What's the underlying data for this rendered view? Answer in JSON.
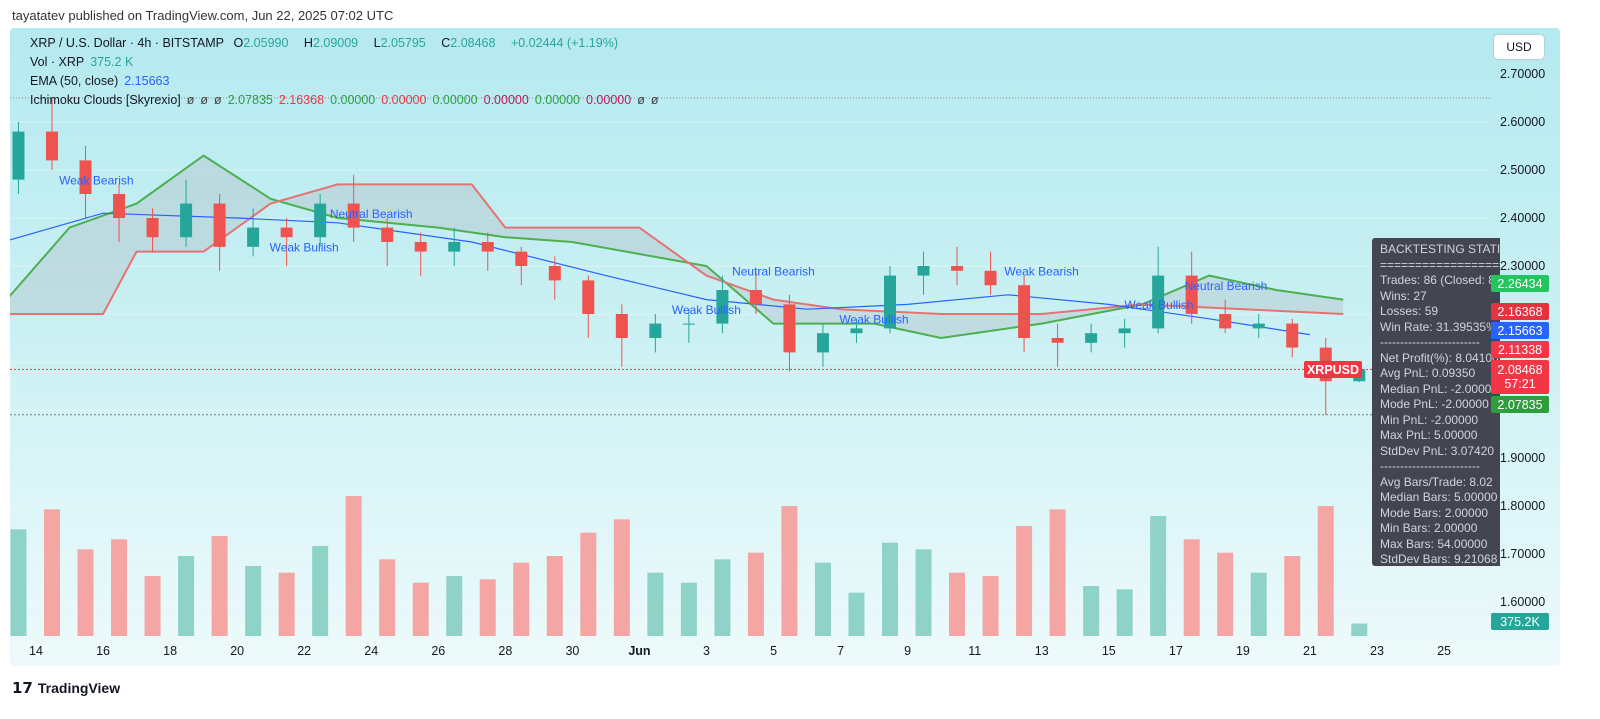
{
  "published": "tayatatev published on TradingView.com, Jun 22, 2025 07:02 UTC",
  "legend": {
    "symbol": "XRP / U.S. Dollar · 4h · BITSTAMP",
    "o_label": "O",
    "o": "2.05990",
    "h_label": "H",
    "h": "2.09009",
    "l_label": "L",
    "l": "2.05795",
    "c_label": "C",
    "c": "2.08468",
    "change": "+0.02444 (+1.19%)",
    "vol_label": "Vol · XRP",
    "vol": "375.2 K",
    "ema_label": "EMA (50, close)",
    "ema": "2.15663",
    "ichi_label": "Ichimoku Clouds [Skyrexio]",
    "ichi_values": [
      "ø",
      "ø",
      "ø",
      "2.07835",
      "2.16368",
      "0.00000",
      "0.00000",
      "0.00000",
      "0.00000",
      "0.00000",
      "0.00000",
      "ø",
      "ø"
    ]
  },
  "currency_button": "USD",
  "price_ticks": [
    "2.70000",
    "2.60000",
    "2.50000",
    "2.40000",
    "2.30000",
    "1.90000",
    "1.80000",
    "1.70000",
    "1.60000"
  ],
  "price_labels": [
    {
      "v": "2.26434",
      "color": "#22c55e"
    },
    {
      "v": "2.16368",
      "color": "#e5323f"
    },
    {
      "v": "2.15663",
      "color": "#2962ff"
    },
    {
      "v": "2.11338",
      "color": "#f23645"
    },
    {
      "v": "2.08468",
      "color": "#f23645"
    },
    {
      "v": "2.07835",
      "color": "#2e9e3c"
    }
  ],
  "countdown": "57:21",
  "symbol_tag": "XRPUSD",
  "volume_label": "375.2K",
  "x_labels": [
    "14",
    "16",
    "18",
    "20",
    "22",
    "24",
    "26",
    "28",
    "30",
    "Jun",
    "3",
    "5",
    "7",
    "9",
    "11",
    "13",
    "15",
    "17",
    "19",
    "21",
    "23",
    "25"
  ],
  "stats": {
    "title": "BACKTESTING STATISTICS",
    "sep": "==================",
    "lines1": [
      "Trades: 86 (Closed: 86)",
      "Wins: 27",
      "Losses: 59",
      "Win Rate: 31.39535%"
    ],
    "dash": "-------------------------",
    "lines2": [
      "Net Profit(%): 8.04100",
      "Avg PnL: 0.09350",
      "Median PnL: -2.00000",
      "Mode PnL: -2.00000",
      "Min PnL: -2.00000",
      "Max PnL: 5.00000",
      "StdDev PnL: 3.07420"
    ],
    "lines3": [
      "Avg Bars/Trade: 8.02",
      "Median Bars: 5.00000",
      "Mode Bars: 2.00000",
      "Min Bars: 2.00000",
      "Max Bars: 54.00000",
      "StdDev Bars: 9.21068"
    ]
  },
  "brand": "TradingView",
  "colors": {
    "up": "#26a69a",
    "down": "#ef5350",
    "ema": "#2962ff",
    "span_a": "#4caf50",
    "span_b": "#e57373"
  },
  "chart_data": {
    "type": "candlestick",
    "timeframe": "4h",
    "ylim": [
      1.55,
      2.75
    ],
    "xlim": [
      "2025-05-13",
      "2025-05-26"
    ],
    "candles": [
      [
        "2025-05-13",
        2.48,
        2.6,
        2.45,
        2.58
      ],
      [
        "2025-05-14",
        2.58,
        2.65,
        2.5,
        2.52
      ],
      [
        "2025-05-15",
        2.52,
        2.55,
        2.4,
        2.45
      ],
      [
        "2025-05-16",
        2.45,
        2.47,
        2.35,
        2.4
      ],
      [
        "2025-05-17",
        2.4,
        2.42,
        2.33,
        2.36
      ],
      [
        "2025-05-18",
        2.36,
        2.48,
        2.34,
        2.43
      ],
      [
        "2025-05-19",
        2.43,
        2.45,
        2.29,
        2.34
      ],
      [
        "2025-05-20",
        2.34,
        2.42,
        2.32,
        2.38
      ],
      [
        "2025-05-21",
        2.38,
        2.4,
        2.3,
        2.36
      ],
      [
        "2025-05-22",
        2.36,
        2.45,
        2.34,
        2.43
      ],
      [
        "2025-05-23",
        2.43,
        2.49,
        2.35,
        2.38
      ],
      [
        "2025-05-24",
        2.38,
        2.4,
        2.3,
        2.35
      ],
      [
        "2025-05-25",
        2.35,
        2.37,
        2.28,
        2.33
      ],
      [
        "2025-05-26",
        2.33,
        2.38,
        2.3,
        2.35
      ],
      [
        "2025-05-27",
        2.35,
        2.37,
        2.29,
        2.33
      ],
      [
        "2025-05-28",
        2.33,
        2.34,
        2.26,
        2.3
      ],
      [
        "2025-05-29",
        2.3,
        2.32,
        2.23,
        2.27
      ],
      [
        "2025-05-30",
        2.27,
        2.28,
        2.15,
        2.2
      ],
      [
        "2025-05-31",
        2.2,
        2.22,
        2.09,
        2.15
      ],
      [
        "2025-06-01",
        2.15,
        2.2,
        2.12,
        2.18
      ],
      [
        "2025-06-02",
        2.18,
        2.21,
        2.14,
        2.18
      ],
      [
        "2025-06-03",
        2.18,
        2.28,
        2.16,
        2.25
      ],
      [
        "2025-06-04",
        2.25,
        2.29,
        2.2,
        2.22
      ],
      [
        "2025-06-05",
        2.22,
        2.24,
        2.08,
        2.12
      ],
      [
        "2025-06-06",
        2.12,
        2.18,
        2.09,
        2.16
      ],
      [
        "2025-06-07",
        2.16,
        2.19,
        2.14,
        2.17
      ],
      [
        "2025-06-08",
        2.17,
        2.3,
        2.16,
        2.28
      ],
      [
        "2025-06-09",
        2.28,
        2.33,
        2.24,
        2.3
      ],
      [
        "2025-06-10",
        2.3,
        2.34,
        2.26,
        2.29
      ],
      [
        "2025-06-11",
        2.29,
        2.33,
        2.24,
        2.26
      ],
      [
        "2025-06-12",
        2.26,
        2.28,
        2.12,
        2.15
      ],
      [
        "2025-06-13",
        2.15,
        2.18,
        2.09,
        2.14
      ],
      [
        "2025-06-14",
        2.14,
        2.18,
        2.12,
        2.16
      ],
      [
        "2025-06-15",
        2.16,
        2.19,
        2.13,
        2.17
      ],
      [
        "2025-06-16",
        2.17,
        2.34,
        2.16,
        2.28
      ],
      [
        "2025-06-17",
        2.28,
        2.33,
        2.18,
        2.2
      ],
      [
        "2025-06-18",
        2.2,
        2.23,
        2.16,
        2.17
      ],
      [
        "2025-06-19",
        2.17,
        2.2,
        2.15,
        2.18
      ],
      [
        "2025-06-20",
        2.18,
        2.19,
        2.11,
        2.13
      ],
      [
        "2025-06-21",
        2.13,
        2.15,
        1.99,
        2.06
      ],
      [
        "2025-06-22",
        2.0599,
        2.09009,
        2.05795,
        2.08468
      ]
    ],
    "volume_k": [
      3200,
      3800,
      2600,
      2900,
      1800,
      2400,
      3000,
      2100,
      1900,
      2700,
      4200,
      2300,
      1600,
      1800,
      1700,
      2200,
      2400,
      3100,
      3500,
      1900,
      1600,
      2300,
      2500,
      3900,
      2200,
      1300,
      2800,
      2600,
      1900,
      1800,
      3300,
      3800,
      1500,
      1400,
      3600,
      2900,
      2500,
      1900,
      2400,
      3900,
      375.2
    ],
    "ema_50": [
      [
        "2025-05-13",
        2.35
      ],
      [
        "2025-05-16",
        2.41
      ],
      [
        "2025-05-20",
        2.4
      ],
      [
        "2025-05-23",
        2.39
      ],
      [
        "2025-05-27",
        2.35
      ],
      [
        "2025-05-31",
        2.28
      ],
      [
        "2025-06-03",
        2.23
      ],
      [
        "2025-06-06",
        2.21
      ],
      [
        "2025-06-09",
        2.22
      ],
      [
        "2025-06-12",
        2.24
      ],
      [
        "2025-06-15",
        2.22
      ],
      [
        "2025-06-18",
        2.19
      ],
      [
        "2025-06-21",
        2.157
      ]
    ],
    "span_a": [
      [
        "2025-05-13",
        2.22
      ],
      [
        "2025-05-15",
        2.38
      ],
      [
        "2025-05-17",
        2.43
      ],
      [
        "2025-05-19",
        2.53
      ],
      [
        "2025-05-21",
        2.44
      ],
      [
        "2025-05-23",
        2.4
      ],
      [
        "2025-05-26",
        2.38
      ],
      [
        "2025-05-28",
        2.36
      ],
      [
        "2025-05-30",
        2.35
      ],
      [
        "2025-06-03",
        2.3
      ],
      [
        "2025-06-05",
        2.18
      ],
      [
        "2025-06-08",
        2.18
      ],
      [
        "2025-06-10",
        2.15
      ],
      [
        "2025-06-13",
        2.18
      ],
      [
        "2025-06-16",
        2.22
      ],
      [
        "2025-06-18",
        2.28
      ],
      [
        "2025-06-20",
        2.25
      ],
      [
        "2025-06-22",
        2.23
      ]
    ],
    "span_b": [
      [
        "2025-05-13",
        2.2
      ],
      [
        "2025-05-16",
        2.2
      ],
      [
        "2025-05-17",
        2.33
      ],
      [
        "2025-05-19",
        2.33
      ],
      [
        "2025-05-21",
        2.43
      ],
      [
        "2025-05-23",
        2.47
      ],
      [
        "2025-05-27",
        2.47
      ],
      [
        "2025-05-28",
        2.38
      ],
      [
        "2025-06-01",
        2.38
      ],
      [
        "2025-06-03",
        2.28
      ],
      [
        "2025-06-05",
        2.23
      ],
      [
        "2025-06-07",
        2.21
      ],
      [
        "2025-06-10",
        2.2
      ],
      [
        "2025-06-13",
        2.2
      ],
      [
        "2025-06-16",
        2.22
      ],
      [
        "2025-06-22",
        2.2
      ]
    ],
    "signals": [
      [
        "2025-05-15.8",
        2.47,
        "Weak Bearish"
      ],
      [
        "2025-05-22",
        2.33,
        "Weak Bullish"
      ],
      [
        "2025-05-24",
        2.4,
        "Neutral Bearish"
      ],
      [
        "2025-06-05",
        2.28,
        "Neutral Bearish"
      ],
      [
        "2025-06-03",
        2.2,
        "Weak Bullish"
      ],
      [
        "2025-06-08",
        2.18,
        "Weak Bullish"
      ],
      [
        "2025-06-13",
        2.28,
        "Weak Bearish"
      ],
      [
        "2025-06-16.5",
        2.21,
        "Weak Bullish"
      ],
      [
        "2025-06-18.5",
        2.25,
        "Neutral Bearish"
      ]
    ]
  }
}
